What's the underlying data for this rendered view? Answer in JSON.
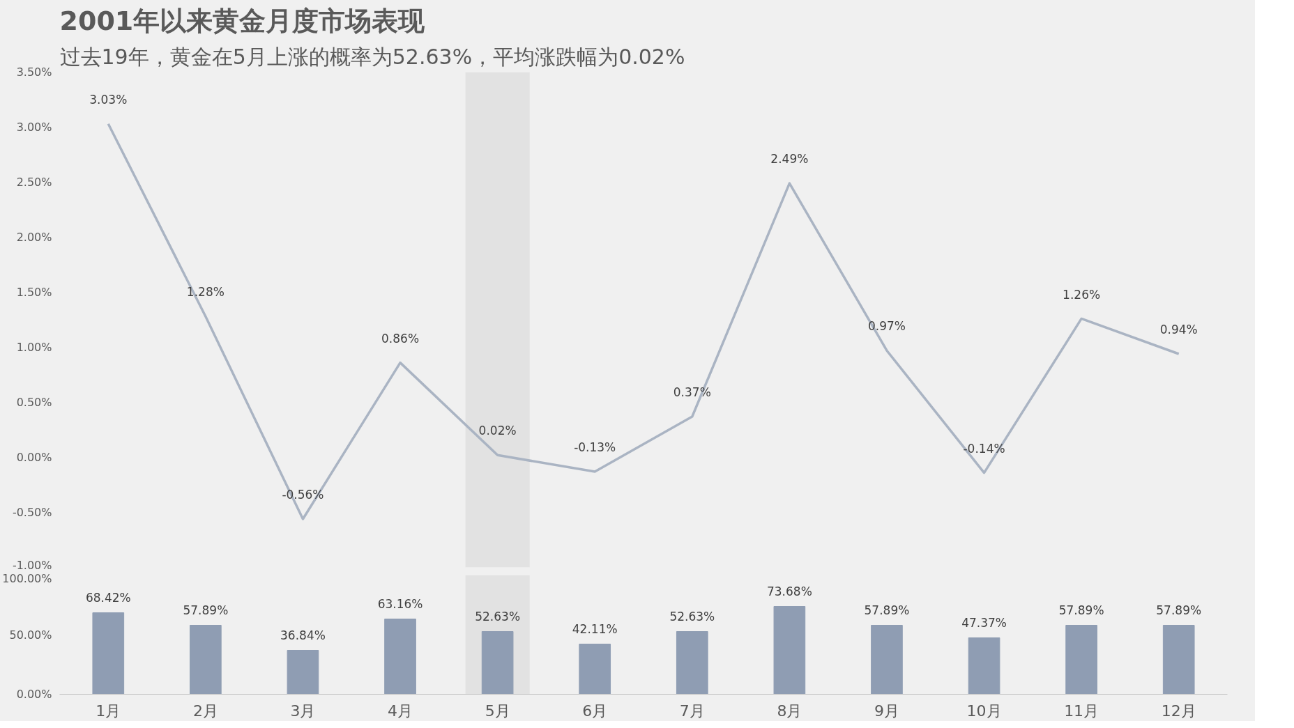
{
  "chart_data": [
    {
      "type": "line",
      "title": "2001年以来黄金月度市场表现",
      "subtitle": "过去19年，黄金在5月上涨的概率为52.63%，平均涨跌幅为0.02%",
      "categories": [
        "1月",
        "2月",
        "3月",
        "4月",
        "5月",
        "6月",
        "7月",
        "8月",
        "9月",
        "10月",
        "11月",
        "12月"
      ],
      "series": [
        {
          "color": "#aab4c3",
          "values": [
            3.03,
            1.28,
            -0.56,
            0.86,
            0.02,
            -0.13,
            0.37,
            2.49,
            0.97,
            -0.14,
            1.26,
            0.94
          ],
          "value_labels": [
            "3.03%",
            "1.28%",
            "-0.56%",
            "0.86%",
            "0.02%",
            "-0.13%",
            "0.37%",
            "2.49%",
            "0.97%",
            "-0.14%",
            "1.26%",
            "0.94%"
          ]
        }
      ],
      "ylim": [
        -1.0,
        3.5
      ],
      "yticks": [
        {
          "value": -1.0,
          "label": "-1.00%"
        },
        {
          "value": -0.5,
          "label": "-0.50%"
        },
        {
          "value": 0,
          "label": "0.00%"
        },
        {
          "value": 0.5,
          "label": "0.50%"
        },
        {
          "value": 1.0,
          "label": "1.00%"
        },
        {
          "value": 1.5,
          "label": "1.50%"
        },
        {
          "value": 2.0,
          "label": "2.00%"
        },
        {
          "value": 2.5,
          "label": "2.50%"
        },
        {
          "value": 3.0,
          "label": "3.00%"
        },
        {
          "value": 3.5,
          "label": "3.50%"
        }
      ],
      "bands": [
        {
          "axis": "x",
          "from": "5月",
          "to": "5月",
          "color": "#e2e2e2"
        }
      ],
      "tick_labels": "y",
      "grid": false,
      "marker": "none",
      "line_style": "solid"
    },
    {
      "type": "bar",
      "categories": [
        "1月",
        "2月",
        "3月",
        "4月",
        "5月",
        "6月",
        "7月",
        "8月",
        "9月",
        "10月",
        "11月",
        "12月"
      ],
      "series": [
        {
          "color": "#8f9db3",
          "values": [
            68.42,
            57.89,
            36.84,
            63.16,
            52.63,
            42.11,
            52.63,
            73.68,
            57.89,
            47.37,
            57.89,
            57.89
          ],
          "value_labels": [
            "68.42%",
            "57.89%",
            "36.84%",
            "63.16%",
            "52.63%",
            "42.11%",
            "52.63%",
            "73.68%",
            "57.89%",
            "47.37%",
            "57.89%",
            "57.89%"
          ]
        }
      ],
      "ylim": [
        0,
        100
      ],
      "yticks": [
        {
          "value": 0,
          "label": "0.00%"
        },
        {
          "value": 50,
          "label": "50.00%"
        },
        {
          "value": 100,
          "label": "100.00%"
        }
      ],
      "bands": [
        {
          "axis": "x",
          "from": "5月",
          "to": "5月",
          "color": "#e2e2e2"
        }
      ],
      "grid": false
    }
  ]
}
